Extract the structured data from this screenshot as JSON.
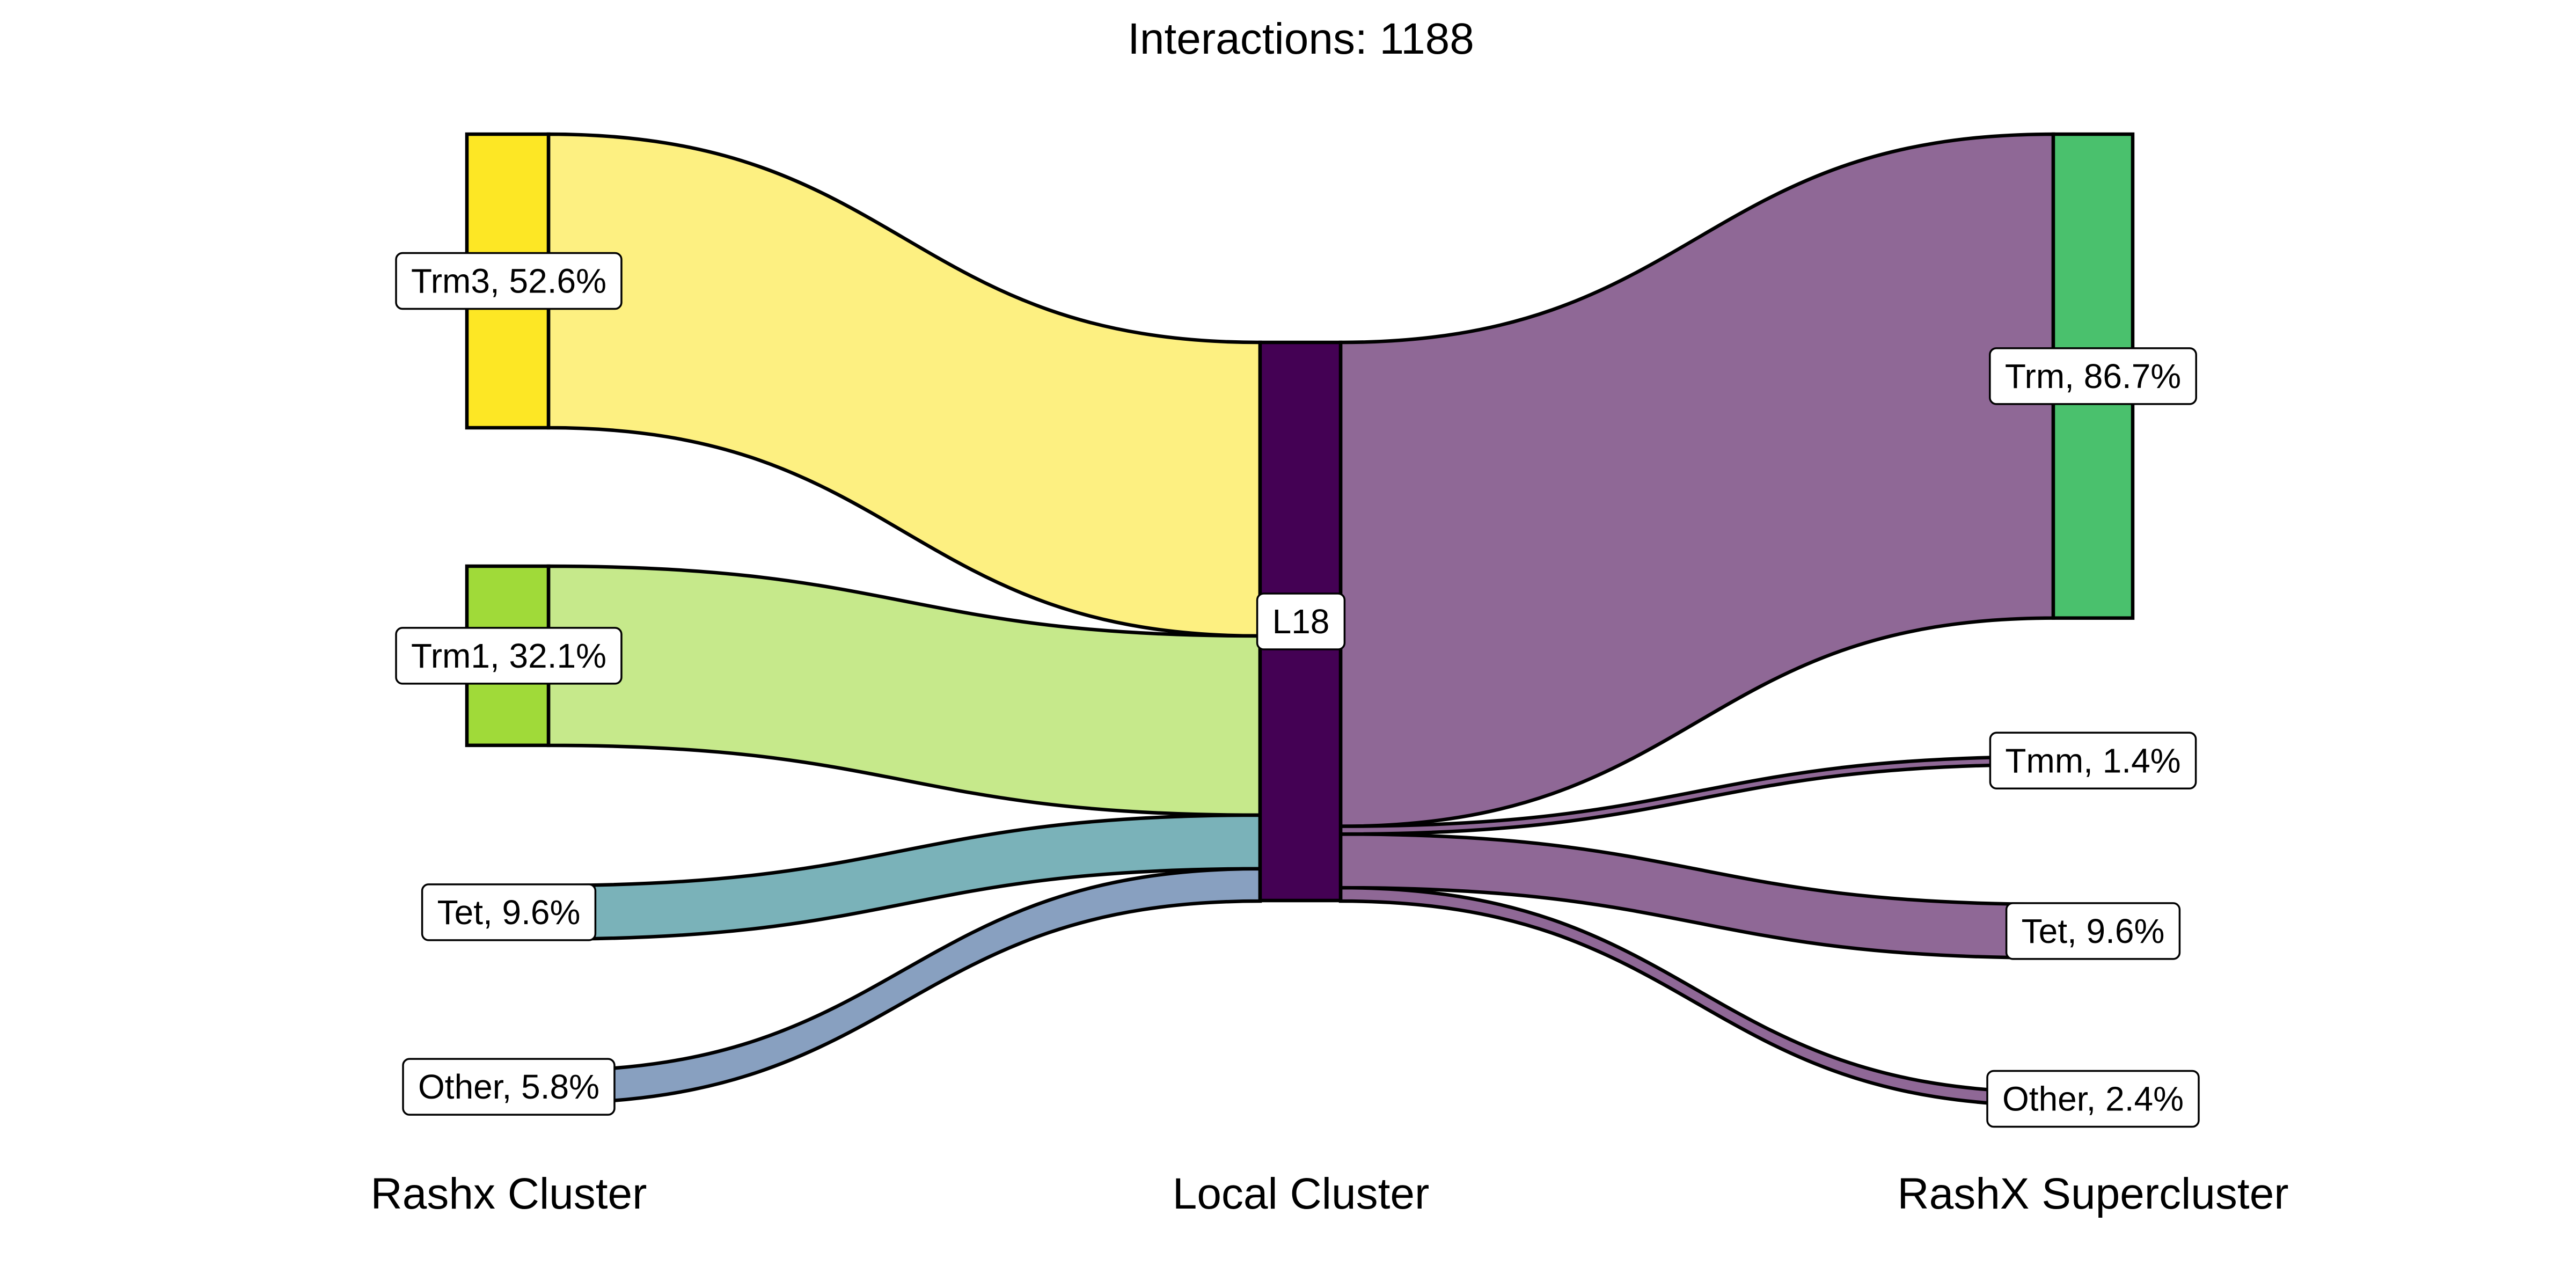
{
  "title": "Interactions: 1188",
  "columns": [
    "Rashx Cluster",
    "Local Cluster",
    "RashX Supercluster"
  ],
  "center": {
    "label": "L18",
    "color": "#440154"
  },
  "sources": [
    {
      "name": "Trm3",
      "pct": 52.6,
      "label": "Trm3, 52.6%",
      "node_color": "#fde725",
      "flow_color": "#fdf081"
    },
    {
      "name": "Trm1",
      "pct": 32.1,
      "label": "Trm1, 32.1%",
      "node_color": "#a0da39",
      "flow_color": "#c6e98b"
    },
    {
      "name": "Tet",
      "pct": 9.6,
      "label": "Tet, 9.6%",
      "node_color": "#7ab2b9",
      "flow_color": "#7ab2b9"
    },
    {
      "name": "Other",
      "pct": 5.8,
      "label": "Other, 5.8%",
      "node_color": "#88a0c0",
      "flow_color": "#88a0c0"
    }
  ],
  "targets": [
    {
      "name": "Trm",
      "pct": 86.7,
      "label": "Trm, 86.7%",
      "node_color": "#4ac16d",
      "flow_color": "#8f6896"
    },
    {
      "name": "Tmm",
      "pct": 1.4,
      "label": "Tmm, 1.4%",
      "node_color": "#8f6896",
      "flow_color": "#8f6896"
    },
    {
      "name": "Tet",
      "pct": 9.6,
      "label": "Tet, 9.6%",
      "node_color": "#8f6896",
      "flow_color": "#8f6896"
    },
    {
      "name": "Other",
      "pct": 2.4,
      "label": "Other, 2.4%",
      "node_color": "#8f6896",
      "flow_color": "#8f6896"
    }
  ]
}
